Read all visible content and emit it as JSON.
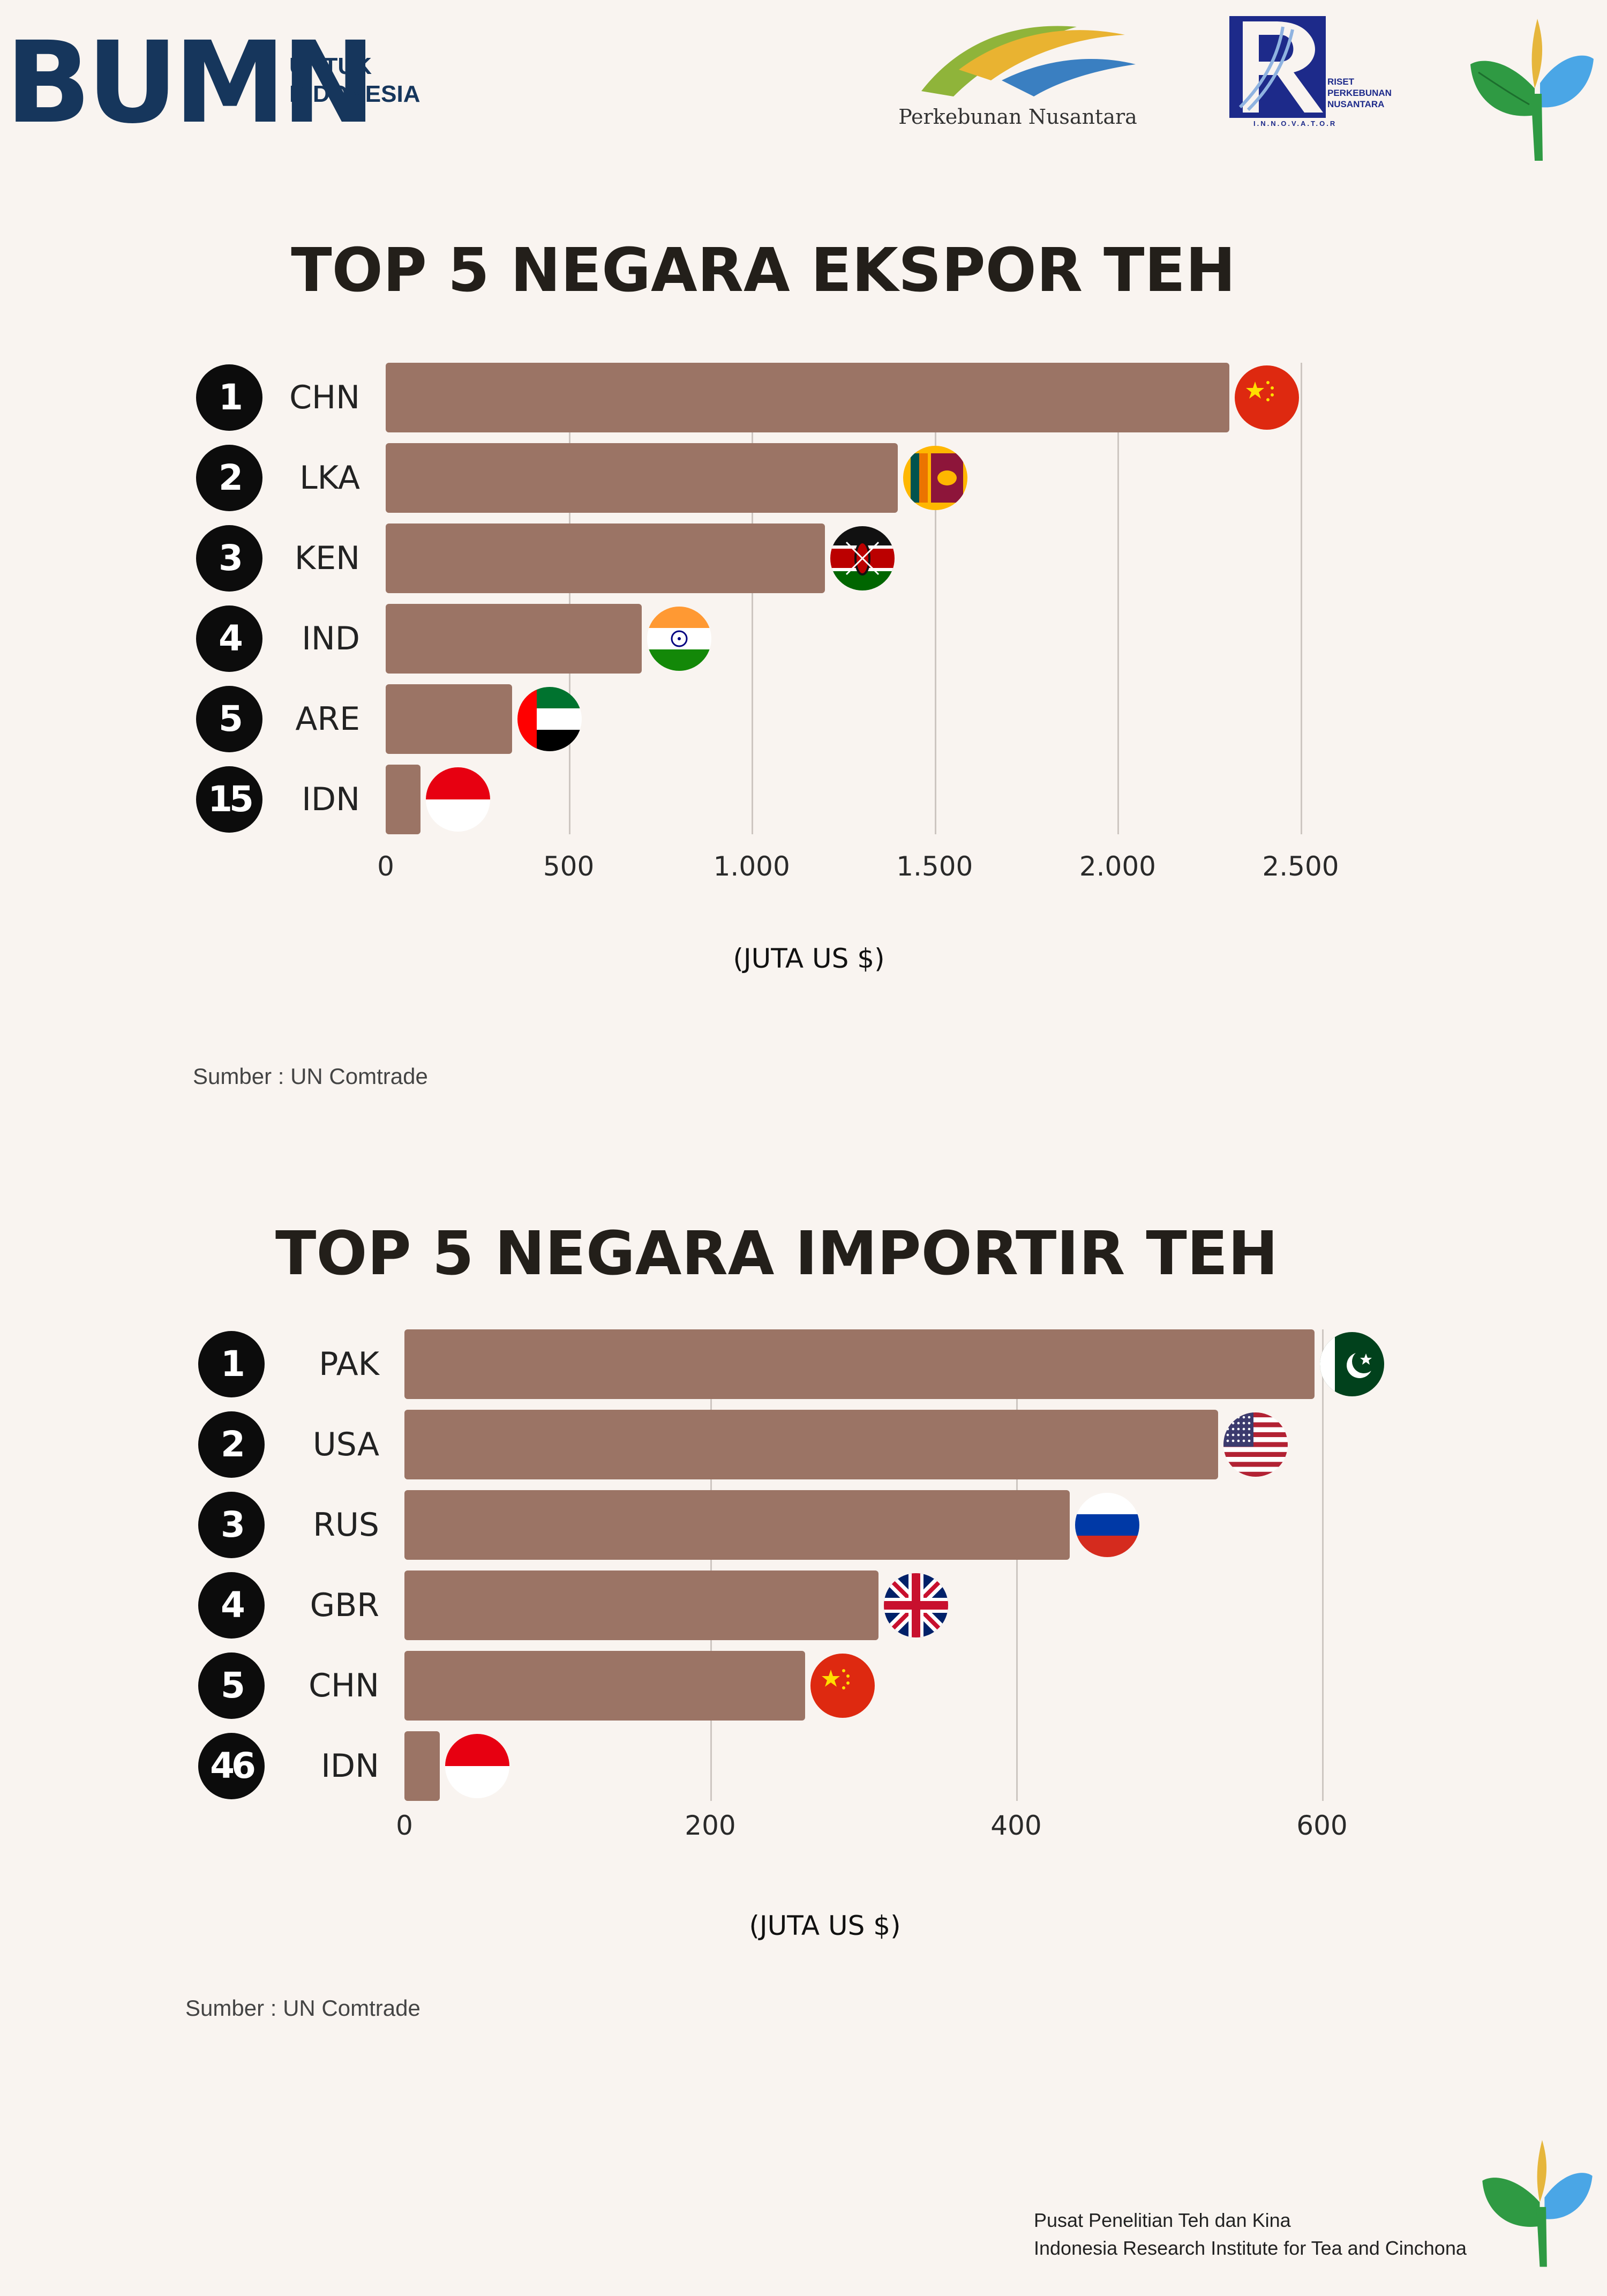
{
  "header": {
    "bumn_logo_text": "BUMN",
    "bumn_tagline_line1": "UNTUK",
    "bumn_tagline_line2": "INDONESIA",
    "perkebunan_logo_text": "Perkebunan Nusantara",
    "riset_logo_line1": "RISET",
    "riset_logo_line2": "PERKEBUNAN",
    "riset_logo_line3": "NUSANTARA",
    "riset_logo_sub": "I.N.N.O.V.A.T.O.R"
  },
  "chart_data": [
    {
      "type": "bar",
      "orientation": "horizontal",
      "title": "TOP 5 NEGARA EKSPOR TEH",
      "ranks": [
        "1",
        "2",
        "3",
        "4",
        "5",
        "15"
      ],
      "categories": [
        "CHN",
        "LKA",
        "KEN",
        "IND",
        "ARE",
        "IDN"
      ],
      "values": [
        2305,
        1400,
        1200,
        700,
        345,
        95
      ],
      "flags": [
        "china-flag-icon",
        "sri-lanka-flag-icon",
        "kenya-flag-icon",
        "india-flag-icon",
        "uae-flag-icon",
        "indonesia-flag-icon"
      ],
      "xticks": [
        0,
        500,
        1000,
        1500,
        2000,
        2500
      ],
      "xtick_labels": [
        "0",
        "500",
        "1.000",
        "1.500",
        "2.000",
        "2.500"
      ],
      "xlim": [
        0,
        2500
      ],
      "xlabel": "(JUTA US $)",
      "bar_color": "#9b7465",
      "grid": true,
      "source": "Sumber : UN Comtrade"
    },
    {
      "type": "bar",
      "orientation": "horizontal",
      "title": "TOP 5 NEGARA IMPORTIR TEH",
      "ranks": [
        "1",
        "2",
        "3",
        "4",
        "5",
        "46"
      ],
      "categories": [
        "PAK",
        "USA",
        "RUS",
        "GBR",
        "CHN",
        "IDN"
      ],
      "values": [
        595,
        532,
        435,
        310,
        262,
        23
      ],
      "flags": [
        "pakistan-flag-icon",
        "usa-flag-icon",
        "russia-flag-icon",
        "uk-flag-icon",
        "china-flag-icon",
        "indonesia-flag-icon"
      ],
      "xticks": [
        0,
        200,
        400,
        600
      ],
      "xtick_labels": [
        "0",
        "200",
        "400",
        "600"
      ],
      "xlim": [
        0,
        600
      ],
      "xlabel": "(JUTA US $)",
      "bar_color": "#9b7465",
      "grid": true,
      "source": "Sumber : UN Comtrade"
    }
  ],
  "footer": {
    "line1": "Pusat Penelitian Teh dan Kina",
    "line2": "Indonesia Research Institute for Tea and Cinchona"
  }
}
